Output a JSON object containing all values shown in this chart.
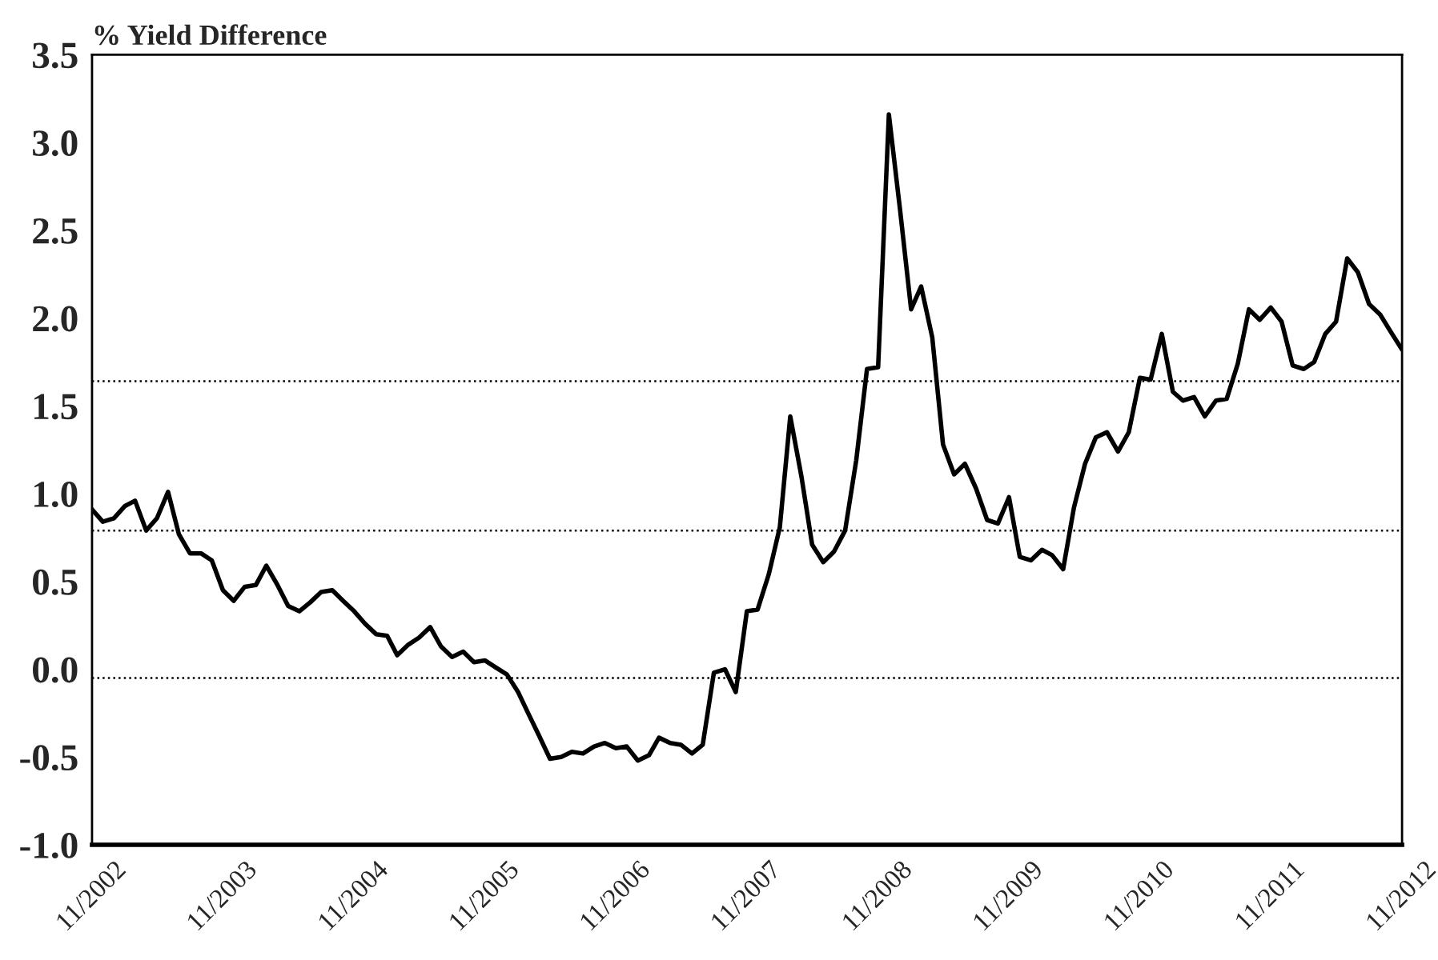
{
  "chart_data": {
    "type": "line",
    "ylabel": "% Yield Difference",
    "x": [
      "2002-11",
      "2002-12",
      "2003-01",
      "2003-02",
      "2003-03",
      "2003-04",
      "2003-05",
      "2003-06",
      "2003-07",
      "2003-08",
      "2003-09",
      "2003-10",
      "2003-11",
      "2003-12",
      "2004-01",
      "2004-02",
      "2004-03",
      "2004-04",
      "2004-05",
      "2004-06",
      "2004-07",
      "2004-08",
      "2004-09",
      "2004-10",
      "2004-11",
      "2004-12",
      "2005-01",
      "2005-02",
      "2005-03",
      "2005-04",
      "2005-05",
      "2005-06",
      "2005-07",
      "2005-08",
      "2005-09",
      "2005-10",
      "2005-11",
      "2005-12",
      "2006-01",
      "2006-02",
      "2006-03",
      "2006-04",
      "2006-05",
      "2006-06",
      "2006-07",
      "2006-08",
      "2006-09",
      "2006-10",
      "2006-11",
      "2006-12",
      "2007-01",
      "2007-02",
      "2007-03",
      "2007-04",
      "2007-05",
      "2007-06",
      "2007-07",
      "2007-08",
      "2007-09",
      "2007-10",
      "2007-11",
      "2007-12",
      "2008-01",
      "2008-02",
      "2008-03",
      "2008-04",
      "2008-05",
      "2008-06",
      "2008-07",
      "2008-08",
      "2008-09",
      "2008-10",
      "2008-11",
      "2008-12",
      "2009-01",
      "2009-02",
      "2009-03",
      "2009-04",
      "2009-05",
      "2009-06",
      "2009-07",
      "2009-08",
      "2009-09",
      "2009-10",
      "2009-11",
      "2009-12",
      "2010-01",
      "2010-02",
      "2010-03",
      "2010-04",
      "2010-05",
      "2010-06",
      "2010-07",
      "2010-08",
      "2010-09",
      "2010-10",
      "2010-11",
      "2010-12",
      "2011-01",
      "2011-02",
      "2011-03",
      "2011-04",
      "2011-05",
      "2011-06",
      "2011-07",
      "2011-08",
      "2011-09",
      "2011-10",
      "2011-11",
      "2011-12",
      "2012-01",
      "2012-02",
      "2012-03",
      "2012-04",
      "2012-05",
      "2012-06",
      "2012-07",
      "2012-08",
      "2012-09",
      "2012-10",
      "2012-11"
    ],
    "series": [
      {
        "color": "#000000",
        "values": [
          0.91,
          0.84,
          0.86,
          0.93,
          0.96,
          0.79,
          0.86,
          1.01,
          0.77,
          0.66,
          0.66,
          0.62,
          0.45,
          0.39,
          0.47,
          0.48,
          0.59,
          0.48,
          0.36,
          0.33,
          0.38,
          0.44,
          0.45,
          0.39,
          0.33,
          0.26,
          0.2,
          0.19,
          0.08,
          0.14,
          0.18,
          0.24,
          0.13,
          0.07,
          0.1,
          0.04,
          0.05,
          0.01,
          -0.03,
          -0.13,
          -0.25,
          -0.38,
          -0.51,
          -0.5,
          -0.47,
          -0.48,
          -0.44,
          -0.42,
          -0.45,
          -0.44,
          -0.52,
          -0.49,
          -0.39,
          -0.42,
          -0.43,
          -0.48,
          -0.43,
          -0.02,
          0.0,
          -0.13,
          0.33,
          0.34,
          0.54,
          0.81,
          1.44,
          1.1,
          0.71,
          0.61,
          0.67,
          0.79,
          1.19,
          1.71,
          1.72,
          3.16,
          2.62,
          2.05,
          2.18,
          1.89,
          1.28,
          1.11,
          1.17,
          1.03,
          0.85,
          0.83,
          0.98,
          0.64,
          0.62,
          0.68,
          0.65,
          0.57,
          0.92,
          1.17,
          1.32,
          1.35,
          1.24,
          1.35,
          1.66,
          1.65,
          1.91,
          1.58,
          1.53,
          1.55,
          1.44,
          1.53,
          1.54,
          1.74,
          2.05,
          1.99,
          2.06,
          1.98,
          1.73,
          1.71,
          1.75,
          1.91,
          1.98,
          2.34,
          2.26,
          2.08,
          2.02,
          1.92,
          1.82
        ]
      }
    ],
    "xlim": [
      "2002-11",
      "2012-11"
    ],
    "xticks": [
      {
        "value": "2002-11",
        "label": "11/2002"
      },
      {
        "value": "2003-11",
        "label": "11/2003"
      },
      {
        "value": "2004-11",
        "label": "11/2004"
      },
      {
        "value": "2005-11",
        "label": "11/2005"
      },
      {
        "value": "2006-11",
        "label": "11/2006"
      },
      {
        "value": "2007-11",
        "label": "11/2007"
      },
      {
        "value": "2008-11",
        "label": "11/2008"
      },
      {
        "value": "2009-11",
        "label": "11/2009"
      },
      {
        "value": "2010-11",
        "label": "11/2010"
      },
      {
        "value": "2011-11",
        "label": "11/2011"
      },
      {
        "value": "2012-11",
        "label": "11/2012"
      }
    ],
    "ylim": [
      -1.0,
      3.5
    ],
    "yticks": [
      {
        "value": -1,
        "label": "-1.0"
      },
      {
        "value": -0.5,
        "label": "-0.5"
      },
      {
        "value": 0,
        "label": "0.0"
      },
      {
        "value": 0.5,
        "label": "0.5"
      },
      {
        "value": 1,
        "label": "1.0"
      },
      {
        "value": 1.5,
        "label": "1.5"
      },
      {
        "value": 2,
        "label": "2.0"
      },
      {
        "value": 2.5,
        "label": "2.5"
      },
      {
        "value": 3,
        "label": "3.0"
      },
      {
        "value": 3.5,
        "label": "3.5"
      }
    ],
    "ref_lines": [
      {
        "axis": "y",
        "value": 1.64,
        "color": "#000000",
        "line_style": "dotted"
      },
      {
        "axis": "y",
        "value": 0.79,
        "color": "#000000",
        "line_style": "dotted"
      },
      {
        "axis": "y",
        "value": -0.05,
        "color": "#000000",
        "line_style": "dotted"
      }
    ],
    "grid": false,
    "marker": "none",
    "line_style": "solid"
  }
}
